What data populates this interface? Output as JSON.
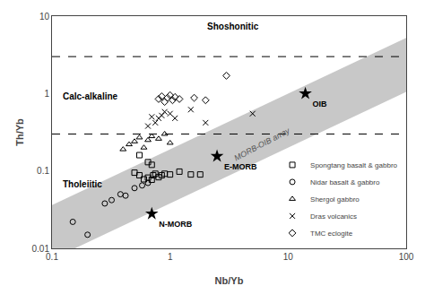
{
  "chart_data": {
    "type": "scatter",
    "log": true,
    "xlabel": "Nb/Yb",
    "ylabel": "Th/Yb",
    "xlim": [
      0.1,
      100
    ],
    "ylim": [
      0.01,
      10
    ],
    "xticks": [
      0.1,
      1,
      10,
      100
    ],
    "yticks": [
      0.01,
      0.1,
      1,
      10
    ],
    "grid": false,
    "legend": "lower right",
    "series": [
      {
        "name": "TMC eclogite",
        "color": "#000000",
        "marker": "diamond-open",
        "x": [
          0.8,
          0.85,
          0.9,
          0.95,
          1.0,
          1.05,
          1.1,
          1.2,
          2.0,
          3.0,
          1.6
        ],
        "y": [
          0.85,
          0.92,
          0.78,
          0.88,
          0.95,
          0.82,
          0.9,
          0.85,
          0.82,
          1.7,
          0.88
        ]
      },
      {
        "name": "Dras volcanics",
        "color": "#000000",
        "marker": "x-thin-open",
        "x": [
          0.65,
          0.7,
          0.75,
          0.8,
          0.85,
          0.9,
          1.0,
          1.1,
          1.5,
          2.0,
          5.0
        ],
        "y": [
          0.38,
          0.5,
          0.42,
          0.48,
          0.52,
          0.58,
          0.55,
          0.48,
          0.62,
          0.42,
          0.55
        ]
      },
      {
        "name": "Shergol gabbro",
        "color": "#000000",
        "marker": "triangle-up-open",
        "x": [
          0.4,
          0.45,
          0.5,
          0.55,
          0.6,
          0.65,
          0.7,
          0.8,
          0.9,
          1.0
        ],
        "y": [
          0.19,
          0.22,
          0.24,
          0.27,
          0.2,
          0.25,
          0.28,
          0.26,
          0.3,
          0.23
        ]
      },
      {
        "name": "Nidar basalt & gabbro",
        "color": "#000000",
        "marker": "circle-open",
        "x": [
          0.15,
          0.2,
          0.28,
          0.32,
          0.38,
          0.42,
          0.5,
          0.58,
          0.65
        ],
        "y": [
          0.022,
          0.015,
          0.038,
          0.042,
          0.05,
          0.048,
          0.06,
          0.065,
          0.07
        ]
      },
      {
        "name": "Spongtang basalt & gabbro",
        "color": "#000000",
        "marker": "square-open",
        "x": [
          0.5,
          0.55,
          0.6,
          0.65,
          0.7,
          0.72,
          0.75,
          0.8,
          0.85,
          0.9,
          1.0,
          1.2,
          1.5,
          0.55,
          0.7,
          0.65,
          1.8
        ],
        "y": [
          0.095,
          0.088,
          0.078,
          0.082,
          0.077,
          0.088,
          0.092,
          0.083,
          0.088,
          0.092,
          0.09,
          0.098,
          0.09,
          0.16,
          0.12,
          0.13,
          0.09
        ]
      }
    ],
    "reference_points": [
      {
        "name": "N-MORB",
        "x": 0.7,
        "y": 0.028,
        "color": "#000000",
        "marker": "star"
      },
      {
        "name": "E-MORB",
        "x": 2.5,
        "y": 0.155,
        "color": "#000000",
        "marker": "star"
      },
      {
        "name": "OIB",
        "x": 14.0,
        "y": 1.0,
        "color": "#000000",
        "marker": "star"
      }
    ],
    "band": {
      "label": "MORB-OIB array",
      "color": "#c8c8c8",
      "x": [
        0.1,
        100
      ],
      "low": [
        0.0072443596,
        1.0471285481
      ],
      "high": [
        0.0363078055,
        5.2480746025
      ]
    },
    "lines": [
      {
        "x": [
          0.1,
          100
        ],
        "y": [
          3.0,
          3.0
        ],
        "color": "#000000",
        "line_style": "dash"
      },
      {
        "x": [
          0.1,
          100
        ],
        "y": [
          0.3,
          0.3
        ],
        "color": "#000000",
        "line_style": "dash"
      }
    ],
    "annotations": [
      {
        "text": "Shoshonitic",
        "x": 2.0,
        "y": 6.0
      },
      {
        "text": "Calc-alkaline",
        "x": 0.12,
        "y": 0.75
      },
      {
        "text": "Tholeiitic",
        "x": 0.12,
        "y": 0.055
      }
    ],
    "band_label_position": {
      "x": 6.0,
      "y": 0.22
    }
  }
}
